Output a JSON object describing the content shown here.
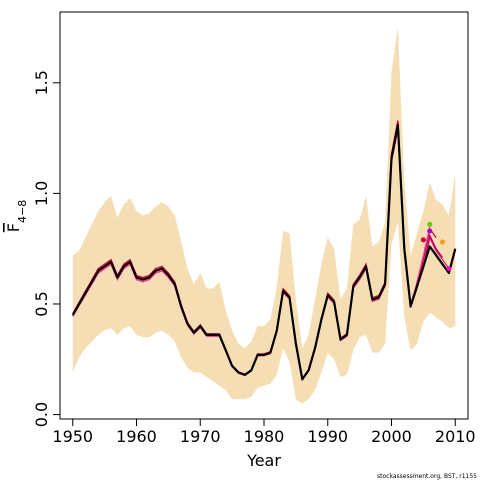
{
  "colors": {
    "band": "#f5deb3",
    "main_line": "#000000",
    "retro_lines": [
      "#e0115f",
      "#a0006a",
      "#cc0033",
      "#ff3399"
    ],
    "retro_points": [
      "#cc0033",
      "#9900cc",
      "#66cc00",
      "#ff9900",
      "#ff00cc"
    ]
  },
  "footer": {
    "credit": "stockassessment.org, BST, r1155"
  },
  "chart_data": {
    "type": "line",
    "title": "",
    "xlabel": "Year",
    "ylabel": "F",
    "ylabel_subscript": "4−8",
    "xlim": [
      1948,
      2012
    ],
    "ylim": [
      -0.02,
      1.82
    ],
    "xticks": [
      "1950",
      "1960",
      "1970",
      "1980",
      "1990",
      "2000",
      "2010"
    ],
    "yticks": [
      "0.0",
      "0.5",
      "1.0",
      "1.5"
    ],
    "grid": false,
    "legend": "none",
    "x": [
      1950,
      1951,
      1952,
      1953,
      1954,
      1955,
      1956,
      1957,
      1958,
      1959,
      1960,
      1961,
      1962,
      1963,
      1964,
      1965,
      1966,
      1967,
      1968,
      1969,
      1970,
      1971,
      1972,
      1973,
      1974,
      1975,
      1976,
      1977,
      1978,
      1979,
      1980,
      1981,
      1982,
      1983,
      1984,
      1985,
      1986,
      1987,
      1988,
      1989,
      1990,
      1991,
      1992,
      1993,
      1994,
      1995,
      1996,
      1997,
      1998,
      1999,
      2000,
      2001,
      2002,
      2003,
      2004,
      2005,
      2006,
      2007,
      2008,
      2009,
      2010
    ],
    "series": [
      {
        "role": "estimate",
        "values": [
          0.45,
          0.5,
          0.55,
          0.6,
          0.65,
          0.67,
          0.69,
          0.62,
          0.67,
          0.69,
          0.62,
          0.61,
          0.62,
          0.65,
          0.66,
          0.63,
          0.59,
          0.49,
          0.41,
          0.37,
          0.4,
          0.36,
          0.36,
          0.36,
          0.29,
          0.22,
          0.19,
          0.18,
          0.2,
          0.27,
          0.27,
          0.28,
          0.38,
          0.56,
          0.53,
          0.32,
          0.16,
          0.2,
          0.3,
          0.43,
          0.54,
          0.51,
          0.34,
          0.36,
          0.58,
          0.62,
          0.67,
          0.52,
          0.53,
          0.59,
          1.16,
          1.31,
          0.75,
          0.49,
          0.58,
          0.67,
          0.76,
          0.72,
          0.68,
          0.64,
          0.75
        ]
      },
      {
        "role": "upper",
        "values": [
          0.72,
          0.74,
          0.8,
          0.86,
          0.92,
          0.96,
          0.99,
          0.89,
          0.95,
          0.98,
          0.92,
          0.9,
          0.91,
          0.94,
          0.96,
          0.94,
          0.9,
          0.78,
          0.66,
          0.59,
          0.64,
          0.57,
          0.57,
          0.6,
          0.47,
          0.38,
          0.32,
          0.3,
          0.33,
          0.4,
          0.4,
          0.43,
          0.58,
          0.83,
          0.82,
          0.52,
          0.3,
          0.36,
          0.52,
          0.68,
          0.8,
          0.75,
          0.52,
          0.57,
          0.86,
          0.88,
          0.99,
          0.76,
          0.78,
          0.87,
          1.55,
          1.75,
          1.05,
          0.72,
          0.82,
          0.92,
          1.05,
          0.97,
          0.95,
          0.9,
          1.09
        ]
      },
      {
        "role": "lower",
        "values": [
          0.19,
          0.26,
          0.3,
          0.33,
          0.36,
          0.38,
          0.39,
          0.36,
          0.39,
          0.4,
          0.36,
          0.35,
          0.35,
          0.37,
          0.38,
          0.36,
          0.33,
          0.26,
          0.21,
          0.19,
          0.19,
          0.17,
          0.15,
          0.13,
          0.11,
          0.07,
          0.07,
          0.07,
          0.08,
          0.12,
          0.13,
          0.14,
          0.18,
          0.3,
          0.24,
          0.07,
          0.05,
          0.07,
          0.11,
          0.19,
          0.28,
          0.25,
          0.17,
          0.18,
          0.29,
          0.35,
          0.36,
          0.28,
          0.28,
          0.32,
          0.77,
          0.87,
          0.44,
          0.29,
          0.32,
          0.42,
          0.46,
          0.44,
          0.42,
          0.39,
          0.4
        ]
      },
      {
        "role": "retro",
        "x_end": 2009,
        "values_tail": [
          0.58,
          0.66,
          0.8,
          0.74,
          0.7,
          0.66
        ]
      },
      {
        "role": "retro",
        "x_end": 2008,
        "values_tail": [
          0.57,
          0.67,
          0.81,
          0.75,
          0.71
        ]
      },
      {
        "role": "retro",
        "x_end": 2007,
        "values_tail": [
          0.59,
          0.7,
          0.84,
          0.8
        ]
      },
      {
        "role": "retro",
        "x_end": 2006,
        "values_tail": [
          0.6,
          0.72,
          0.85
        ]
      }
    ],
    "retro_endpoints": [
      {
        "x": 2005,
        "y": 0.79
      },
      {
        "x": 2006,
        "y": 0.83
      },
      {
        "x": 2006,
        "y": 0.86
      },
      {
        "x": 2008,
        "y": 0.78
      },
      {
        "x": 2009,
        "y": 0.66
      }
    ]
  }
}
